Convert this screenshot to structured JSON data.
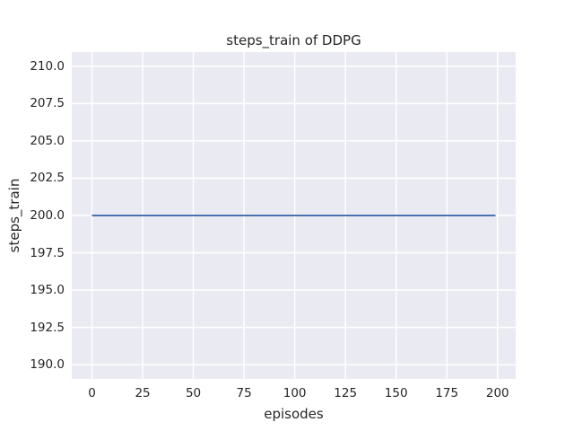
{
  "style": {
    "figure_background": "#FFFFFF",
    "axes_background": "#EAEAF2",
    "grid_color": "#FFFFFF",
    "text_color": "#262626",
    "line_color": "#4C72B0"
  },
  "chart_data": {
    "type": "line",
    "title": "steps_train of DDPG",
    "xlabel": "episodes",
    "ylabel": "steps_train",
    "grid": true,
    "legend": false,
    "xlim": [
      -9.95,
      208.95
    ],
    "ylim": [
      189.05,
      210.95
    ],
    "x_ticks": [
      {
        "value": 0,
        "label": "0"
      },
      {
        "value": 25,
        "label": "25"
      },
      {
        "value": 50,
        "label": "50"
      },
      {
        "value": 75,
        "label": "75"
      },
      {
        "value": 100,
        "label": "100"
      },
      {
        "value": 125,
        "label": "125"
      },
      {
        "value": 150,
        "label": "150"
      },
      {
        "value": 175,
        "label": "175"
      },
      {
        "value": 200,
        "label": "200"
      }
    ],
    "y_ticks": [
      {
        "value": 190.0,
        "label": "190.0"
      },
      {
        "value": 192.5,
        "label": "192.5"
      },
      {
        "value": 195.0,
        "label": "195.0"
      },
      {
        "value": 197.5,
        "label": "197.5"
      },
      {
        "value": 200.0,
        "label": "200.0"
      },
      {
        "value": 202.5,
        "label": "202.5"
      },
      {
        "value": 205.0,
        "label": "205.0"
      },
      {
        "value": 207.5,
        "label": "207.5"
      },
      {
        "value": 210.0,
        "label": "210.0"
      }
    ],
    "series": [
      {
        "name": "steps_train",
        "color": "#4C72B0",
        "x": [
          0,
          199
        ],
        "y": [
          200,
          200
        ]
      }
    ]
  }
}
